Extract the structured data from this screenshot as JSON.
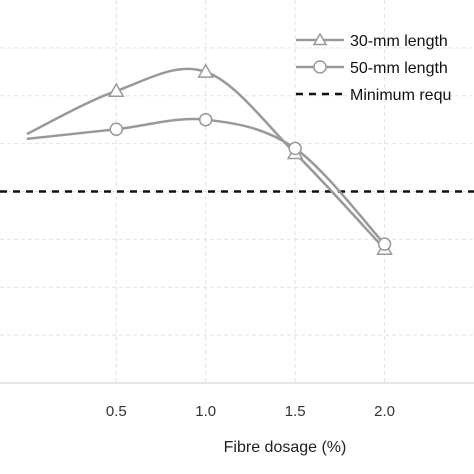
{
  "chart_data": {
    "type": "line",
    "xlabel": "Fibre dosage (%)",
    "ylabel": "",
    "x_ticks": [
      "0.5",
      "1.0",
      "1.5",
      "2.0"
    ],
    "xlim": [
      -0.15,
      2.5
    ],
    "ylim": [
      0,
      8
    ],
    "grid": true,
    "legend_position": "top-right",
    "series": [
      {
        "name": "30-mm length",
        "marker": "triangle",
        "color": "#999999",
        "x": [
          0,
          0.5,
          1.0,
          1.5,
          2.0
        ],
        "y": [
          5.2,
          6.1,
          6.5,
          4.8,
          2.8
        ]
      },
      {
        "name": "50-mm length",
        "marker": "circle",
        "color": "#999999",
        "x": [
          0,
          0.5,
          1.0,
          1.5,
          2.0
        ],
        "y": [
          5.1,
          5.3,
          5.5,
          4.9,
          2.9
        ]
      }
    ],
    "reference_line": {
      "name": "Minimum requ",
      "y": 4.0,
      "style": "dashed",
      "color": "#111111"
    }
  }
}
